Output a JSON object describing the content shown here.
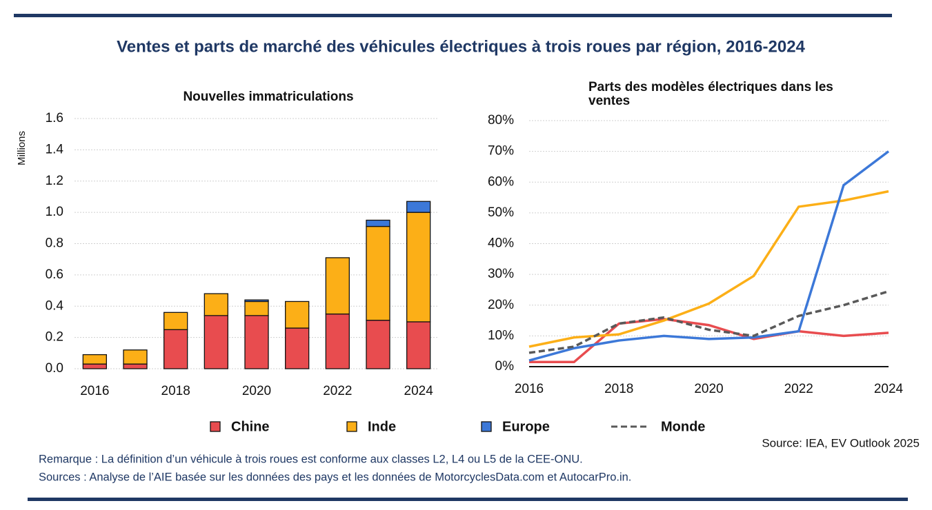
{
  "title": "Ventes et parts de marché des véhicules électriques à trois roues par région, 2016-2024",
  "chart_data": [
    {
      "type": "bar",
      "title": "Nouvelles immatriculations",
      "y_label": "Millions",
      "stacked": true,
      "grid": true,
      "categories": [
        "2016",
        null,
        "2018",
        null,
        "2020",
        null,
        "2022",
        null,
        "2024"
      ],
      "series": [
        {
          "name": "Chine",
          "color": "#e84c4f",
          "values": [
            0.03,
            0.03,
            0.25,
            0.34,
            0.34,
            0.26,
            0.35,
            0.31,
            0.3
          ]
        },
        {
          "name": "Inde",
          "color": "#fcaf17",
          "values": [
            0.06,
            0.09,
            0.11,
            0.14,
            0.09,
            0.17,
            0.36,
            0.6,
            0.7
          ]
        },
        {
          "name": "Europe",
          "color": "#3c78d8",
          "values": [
            0,
            0,
            0,
            0,
            0.01,
            0,
            0,
            0.04,
            0.07
          ]
        }
      ],
      "ylim": [
        0,
        1.6
      ],
      "yticks": [
        {
          "value": 0,
          "label": "0.0"
        },
        0.2,
        0.4,
        0.6,
        0.8,
        {
          "value": 1,
          "label": "1.0"
        },
        1.2,
        1.4,
        1.6
      ]
    },
    {
      "type": "line",
      "title": "Parts des modèles électriques dans les ventes",
      "grid": true,
      "x": [
        2016,
        2017,
        2018,
        2019,
        2020,
        2021,
        2022,
        2023,
        2024
      ],
      "xlim": [
        2016,
        2024
      ],
      "xticks": [
        2016,
        2018,
        2020,
        2022,
        2024
      ],
      "series": [
        {
          "name": "Chine",
          "color": "#e84c4f",
          "values": [
            1.5,
            1.5,
            14,
            15.5,
            13.5,
            9,
            11.5,
            10,
            11
          ]
        },
        {
          "name": "Inde",
          "color": "#fcaf17",
          "values": [
            6.5,
            9.5,
            10.5,
            15,
            20.5,
            29.5,
            52,
            54,
            57
          ]
        },
        {
          "name": "Europe",
          "color": "#3c78d8",
          "values": [
            2,
            6,
            8.5,
            10,
            9,
            9.5,
            11.5,
            59,
            70
          ]
        },
        {
          "name": "Monde",
          "color": "#595959",
          "dashed": true,
          "values": [
            4.5,
            6.5,
            14,
            16,
            12,
            10,
            16.5,
            20,
            24.5
          ]
        }
      ],
      "ylim": [
        0,
        80
      ],
      "yticks": [
        {
          "value": 0,
          "label": "0%"
        },
        {
          "value": 10,
          "label": "10%"
        },
        {
          "value": 20,
          "label": "20%"
        },
        {
          "value": 30,
          "label": "30%"
        },
        {
          "value": 40,
          "label": "40%"
        },
        {
          "value": 50,
          "label": "50%"
        },
        {
          "value": 60,
          "label": "60%"
        },
        {
          "value": 70,
          "label": "70%"
        },
        {
          "value": 80,
          "label": "80%"
        }
      ]
    }
  ],
  "source": "Source: IEA, EV Outlook 2025",
  "notes": [
    "Remarque : La définition d’un véhicule à trois roues est conforme aux classes L2, L4 ou L5 de la CEE-ONU.",
    "Sources : Analyse de l’AIE basée sur les données des pays et les données de MotorcyclesData.com et AutocarPro.in."
  ]
}
